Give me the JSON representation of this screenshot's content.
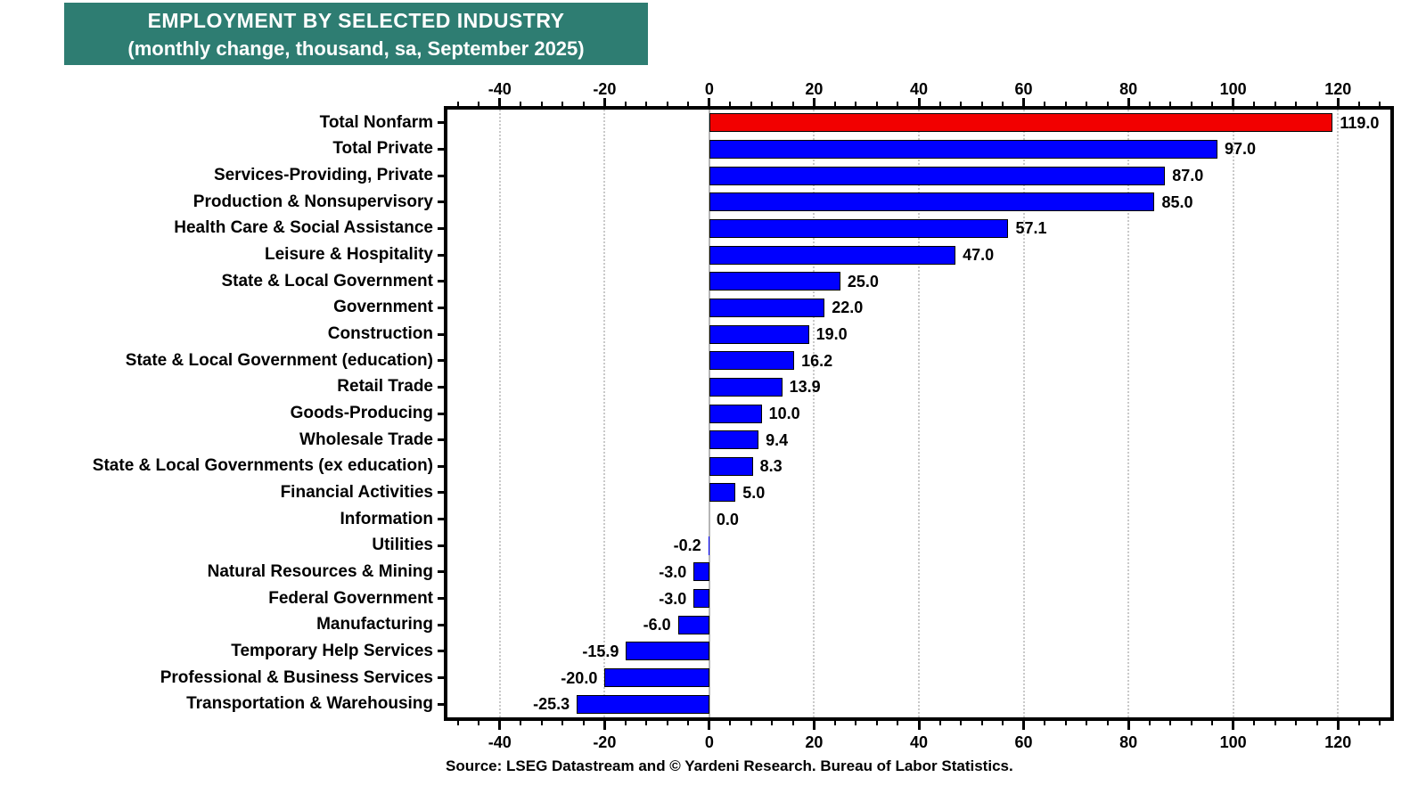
{
  "title": {
    "line1": "EMPLOYMENT BY SELECTED INDUSTRY",
    "line2": "(monthly change, thousand, sa, September 2025)",
    "bg_color": "#2E7D72",
    "text_color": "#FFFFFF"
  },
  "source": "Source: LSEG Datastream and © Yardeni Research. Bureau of Labor Statistics.",
  "chart_data": {
    "type": "bar",
    "orientation": "horizontal",
    "title": "EMPLOYMENT BY SELECTED INDUSTRY (monthly change, thousand, sa, September 2025)",
    "categories": [
      "Total Nonfarm",
      "Total Private",
      "Services-Providing, Private",
      "Production & Nonsupervisory",
      "Health Care & Social Assistance",
      "Leisure & Hospitality",
      "State & Local Government",
      "Government",
      "Construction",
      "State & Local Government (education)",
      "Retail Trade",
      "Goods-Producing",
      "Wholesale Trade",
      "State & Local Governments (ex education)",
      "Financial Activities",
      "Information",
      "Utilities",
      "Natural Resources & Mining",
      "Federal Government",
      "Manufacturing",
      "Temporary Help Services",
      "Professional & Business Services",
      "Transportation & Warehousing"
    ],
    "values": [
      119.0,
      97.0,
      87.0,
      85.0,
      57.1,
      47.0,
      25.0,
      22.0,
      19.0,
      16.2,
      13.9,
      10.0,
      9.4,
      8.3,
      5.0,
      0.0,
      -0.2,
      -3.0,
      -3.0,
      -6.0,
      -15.9,
      -20.0,
      -25.3
    ],
    "value_label_decimals": 1,
    "bar_color": "#0000FF",
    "highlight_index": 0,
    "highlight_color": "#F20000",
    "xlim": [
      -50,
      130
    ],
    "x_ticks": [
      -40,
      -20,
      0,
      20,
      40,
      60,
      80,
      100,
      120
    ],
    "minor_tick_step": 4,
    "grid": "vertical dotted at major ticks, solid gray at zero",
    "xlabel": "",
    "ylabel": ""
  }
}
